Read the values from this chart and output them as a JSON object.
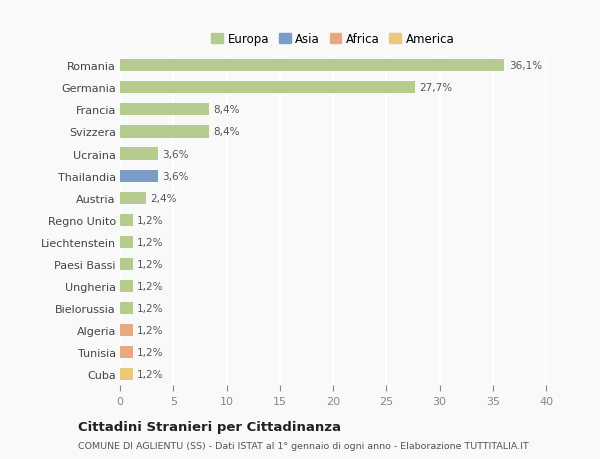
{
  "countries": [
    "Romania",
    "Germania",
    "Francia",
    "Svizzera",
    "Ucraina",
    "Thailandia",
    "Austria",
    "Regno Unito",
    "Liechtenstein",
    "Paesi Bassi",
    "Ungheria",
    "Bielorussia",
    "Algeria",
    "Tunisia",
    "Cuba"
  ],
  "values": [
    36.1,
    27.7,
    8.4,
    8.4,
    3.6,
    3.6,
    2.4,
    1.2,
    1.2,
    1.2,
    1.2,
    1.2,
    1.2,
    1.2,
    1.2
  ],
  "labels": [
    "36,1%",
    "27,7%",
    "8,4%",
    "8,4%",
    "3,6%",
    "3,6%",
    "2,4%",
    "1,2%",
    "1,2%",
    "1,2%",
    "1,2%",
    "1,2%",
    "1,2%",
    "1,2%",
    "1,2%"
  ],
  "colors": [
    "#b5cc8e",
    "#b5cc8e",
    "#b5cc8e",
    "#b5cc8e",
    "#b5cc8e",
    "#7a9cc7",
    "#b5cc8e",
    "#b5cc8e",
    "#b5cc8e",
    "#b5cc8e",
    "#b5cc8e",
    "#b5cc8e",
    "#e8a882",
    "#e8a882",
    "#e8c87a"
  ],
  "legend_labels": [
    "Europa",
    "Asia",
    "Africa",
    "America"
  ],
  "legend_colors": [
    "#b5cc8e",
    "#7a9cc7",
    "#e8a882",
    "#e8c87a"
  ],
  "title": "Cittadini Stranieri per Cittadinanza",
  "subtitle": "COMUNE DI AGLIENTU (SS) - Dati ISTAT al 1° gennaio di ogni anno - Elaborazione TUTTITALIA.IT",
  "xlim": [
    0,
    40
  ],
  "xticks": [
    0,
    5,
    10,
    15,
    20,
    25,
    30,
    35,
    40
  ],
  "background_color": "#f9f9f9",
  "plot_bg_color": "#f9f9f9",
  "grid_color": "#ffffff",
  "bar_height": 0.55
}
